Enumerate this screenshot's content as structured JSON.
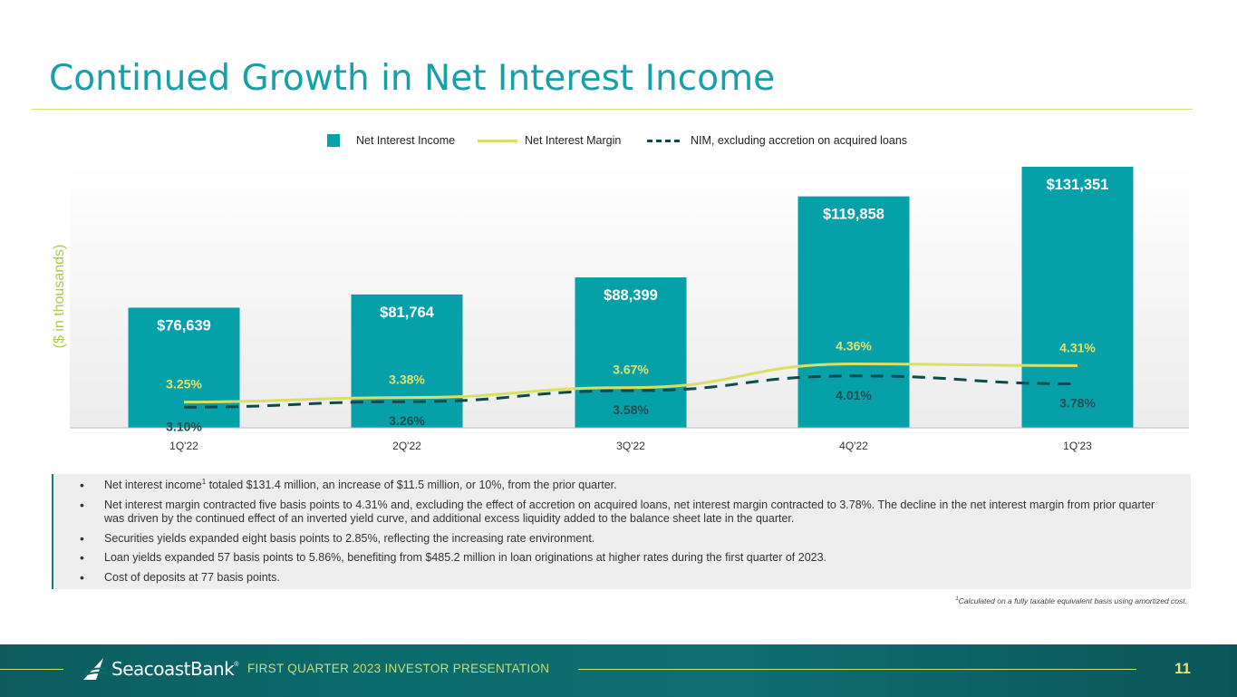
{
  "title": "Continued Growth in Net Interest Income",
  "legend": {
    "bars": "Net Interest Income",
    "line": "Net Interest Margin",
    "dashed": "NIM, excluding accretion on acquired loans"
  },
  "colors": {
    "bar": "#06a0a9",
    "line": "#d9df64",
    "dashed": "#0c4a4c",
    "title": "#16a0a8"
  },
  "chart_data": {
    "type": "bar",
    "title": "",
    "ylabel": "($ in thousands)",
    "xlabel": "",
    "categories": [
      "1Q'22",
      "2Q'22",
      "3Q'22",
      "4Q'22",
      "1Q'23"
    ],
    "series": [
      {
        "name": "Net Interest Income",
        "type": "bar",
        "values": [
          76639,
          81764,
          88399,
          119858,
          131351
        ],
        "labels": [
          "$76,639",
          "$81,764",
          "$88,399",
          "$119,858",
          "$131,351"
        ],
        "ylim": [
          30000,
          131351
        ]
      },
      {
        "name": "Net Interest Margin",
        "type": "line",
        "values": [
          3.25,
          3.38,
          3.67,
          4.36,
          4.31
        ],
        "labels": [
          "3.25%",
          "3.38%",
          "3.67%",
          "4.36%",
          "4.31%"
        ],
        "ylim": [
          2.5,
          10.1
        ]
      },
      {
        "name": "NIM, excluding accretion on acquired loans",
        "type": "line",
        "style": "dashed",
        "values": [
          3.1,
          3.26,
          3.58,
          4.01,
          3.78
        ],
        "labels": [
          "3.10%",
          "3.26%",
          "3.58%",
          "4.01%",
          "3.78%"
        ],
        "ylim": [
          2.5,
          10.1
        ]
      }
    ]
  },
  "bullets": [
    {
      "text": "Net interest income",
      "sup": "1",
      "rest": " totaled $131.4 million, an increase of $11.5 million, or 10%, from the prior quarter."
    },
    {
      "text": "Net interest margin contracted five basis points to 4.31% and, excluding the effect of accretion on acquired loans, net interest margin contracted to 3.78%. The decline in the net interest margin from prior quarter was driven by the continued effect of an inverted yield curve, and additional excess liquidity added to the balance sheet late in the quarter.",
      "sup": "",
      "rest": ""
    },
    {
      "text": "Securities yields expanded eight basis points to 2.85%, reflecting the increasing rate environment.",
      "sup": "",
      "rest": ""
    },
    {
      "text": "Loan yields expanded 57 basis points to 5.86%, benefiting from $485.2 million in loan originations at higher rates during the first quarter of 2023.",
      "sup": "",
      "rest": ""
    },
    {
      "text": "Cost of deposits at 77 basis points.",
      "sup": "",
      "rest": ""
    }
  ],
  "footnote": {
    "sup": "1",
    "text": "Calculated on a fully taxable equivalent basis using amortized cost."
  },
  "footer": {
    "logo": "SeacoastBank",
    "logo_mark": "®",
    "caption": "FIRST QUARTER 2023 INVESTOR PRESENTATION",
    "page": "11"
  }
}
